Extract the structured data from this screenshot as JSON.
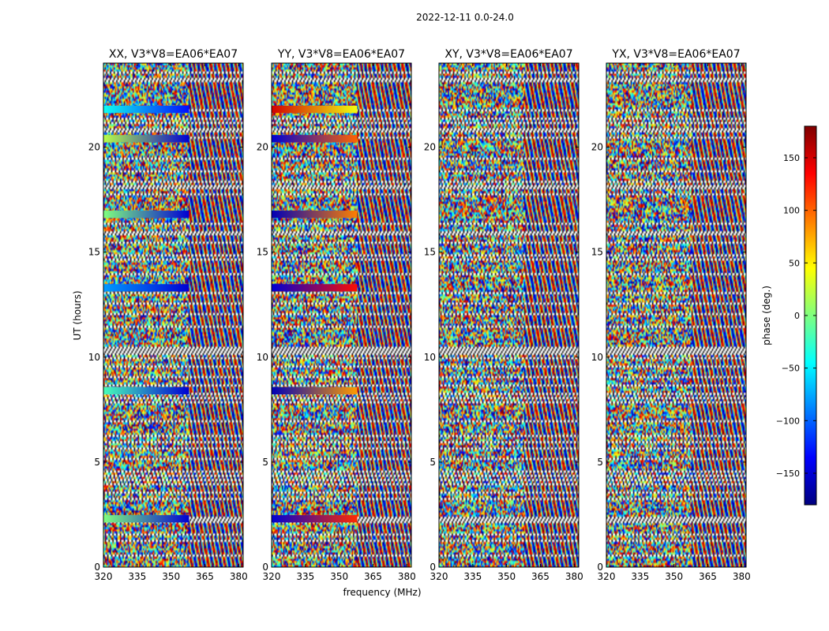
{
  "figure": {
    "suptitle": "2022-12-11 0.0-24.0",
    "xlabel": "frequency (MHz)",
    "ylabel": "UT (hours)",
    "colorbar_label": "phase (deg.)",
    "colorbar_ticks": [
      150,
      100,
      50,
      0,
      -50,
      -100,
      -150
    ],
    "colorbar_range": [
      -180,
      180
    ],
    "colormap": "jet",
    "colormap_stops": [
      "#00007f",
      "#0000ff",
      "#007fff",
      "#00ffff",
      "#7fff7f",
      "#ffff00",
      "#ff7f00",
      "#ff0000",
      "#7f0000"
    ]
  },
  "chart_data": [
    {
      "type": "heatmap",
      "title": "XX, V3*V8=EA06*EA07",
      "xlabel": "",
      "ylabel": "UT (hours)",
      "xlim": [
        320,
        382
      ],
      "ylim": [
        0,
        24
      ],
      "xticks": [
        320,
        335,
        350,
        365,
        380
      ],
      "yticks": [
        0,
        5,
        10,
        15,
        20
      ],
      "value_range": [
        -180,
        180
      ],
      "coherent_phase_bands_deg": [
        {
          "ut_hours": 2.3,
          "freq_mhz": [
            320,
            358
          ],
          "phase_from": 0,
          "phase_to": -150
        },
        {
          "ut_hours": 8.4,
          "freq_mhz": [
            320,
            358
          ],
          "phase_from": -20,
          "phase_to": -150
        },
        {
          "ut_hours": 13.3,
          "freq_mhz": [
            320,
            358
          ],
          "phase_from": -80,
          "phase_to": -150
        },
        {
          "ut_hours": 16.8,
          "freq_mhz": [
            320,
            358
          ],
          "phase_from": 0,
          "phase_to": -150
        },
        {
          "ut_hours": 20.4,
          "freq_mhz": [
            320,
            358
          ],
          "phase_from": 20,
          "phase_to": -150
        },
        {
          "ut_hours": 21.8,
          "freq_mhz": [
            320,
            358
          ],
          "phase_from": -40,
          "phase_to": -130
        }
      ]
    },
    {
      "type": "heatmap",
      "title": "YY, V3*V8=EA06*EA07",
      "xlabel": "frequency (MHz)",
      "ylabel": "",
      "xlim": [
        320,
        382
      ],
      "ylim": [
        0,
        24
      ],
      "xticks": [
        320,
        335,
        350,
        365,
        380
      ],
      "yticks": [
        0,
        5,
        10,
        15,
        20
      ],
      "value_range": [
        -180,
        180
      ],
      "coherent_phase_bands_deg": [
        {
          "ut_hours": 2.3,
          "freq_mhz": [
            320,
            358
          ],
          "phase_from": -150,
          "phase_to": 120
        },
        {
          "ut_hours": 8.4,
          "freq_mhz": [
            320,
            358
          ],
          "phase_from": -160,
          "phase_to": 80
        },
        {
          "ut_hours": 13.3,
          "freq_mhz": [
            320,
            358
          ],
          "phase_from": -150,
          "phase_to": 130
        },
        {
          "ut_hours": 16.8,
          "freq_mhz": [
            320,
            358
          ],
          "phase_from": -160,
          "phase_to": 90
        },
        {
          "ut_hours": 20.4,
          "freq_mhz": [
            320,
            358
          ],
          "phase_from": -150,
          "phase_to": 100
        },
        {
          "ut_hours": 21.8,
          "freq_mhz": [
            320,
            358
          ],
          "phase_from": 150,
          "phase_to": 40
        }
      ]
    },
    {
      "type": "heatmap",
      "title": "XY, V3*V8=EA06*EA07",
      "xlabel": "",
      "ylabel": "",
      "xlim": [
        320,
        382
      ],
      "ylim": [
        0,
        24
      ],
      "xticks": [
        320,
        335,
        350,
        365,
        380
      ],
      "yticks": [
        0,
        5,
        10,
        15,
        20
      ],
      "value_range": [
        -180,
        180
      ],
      "coherent_phase_bands_deg": []
    },
    {
      "type": "heatmap",
      "title": "YX, V3*V8=EA06*EA07",
      "xlabel": "",
      "ylabel": "",
      "xlim": [
        320,
        382
      ],
      "ylim": [
        0,
        24
      ],
      "xticks": [
        320,
        335,
        350,
        365,
        380
      ],
      "yticks": [
        0,
        5,
        10,
        15,
        20
      ],
      "value_range": [
        -180,
        180
      ],
      "coherent_phase_bands_deg": []
    }
  ]
}
